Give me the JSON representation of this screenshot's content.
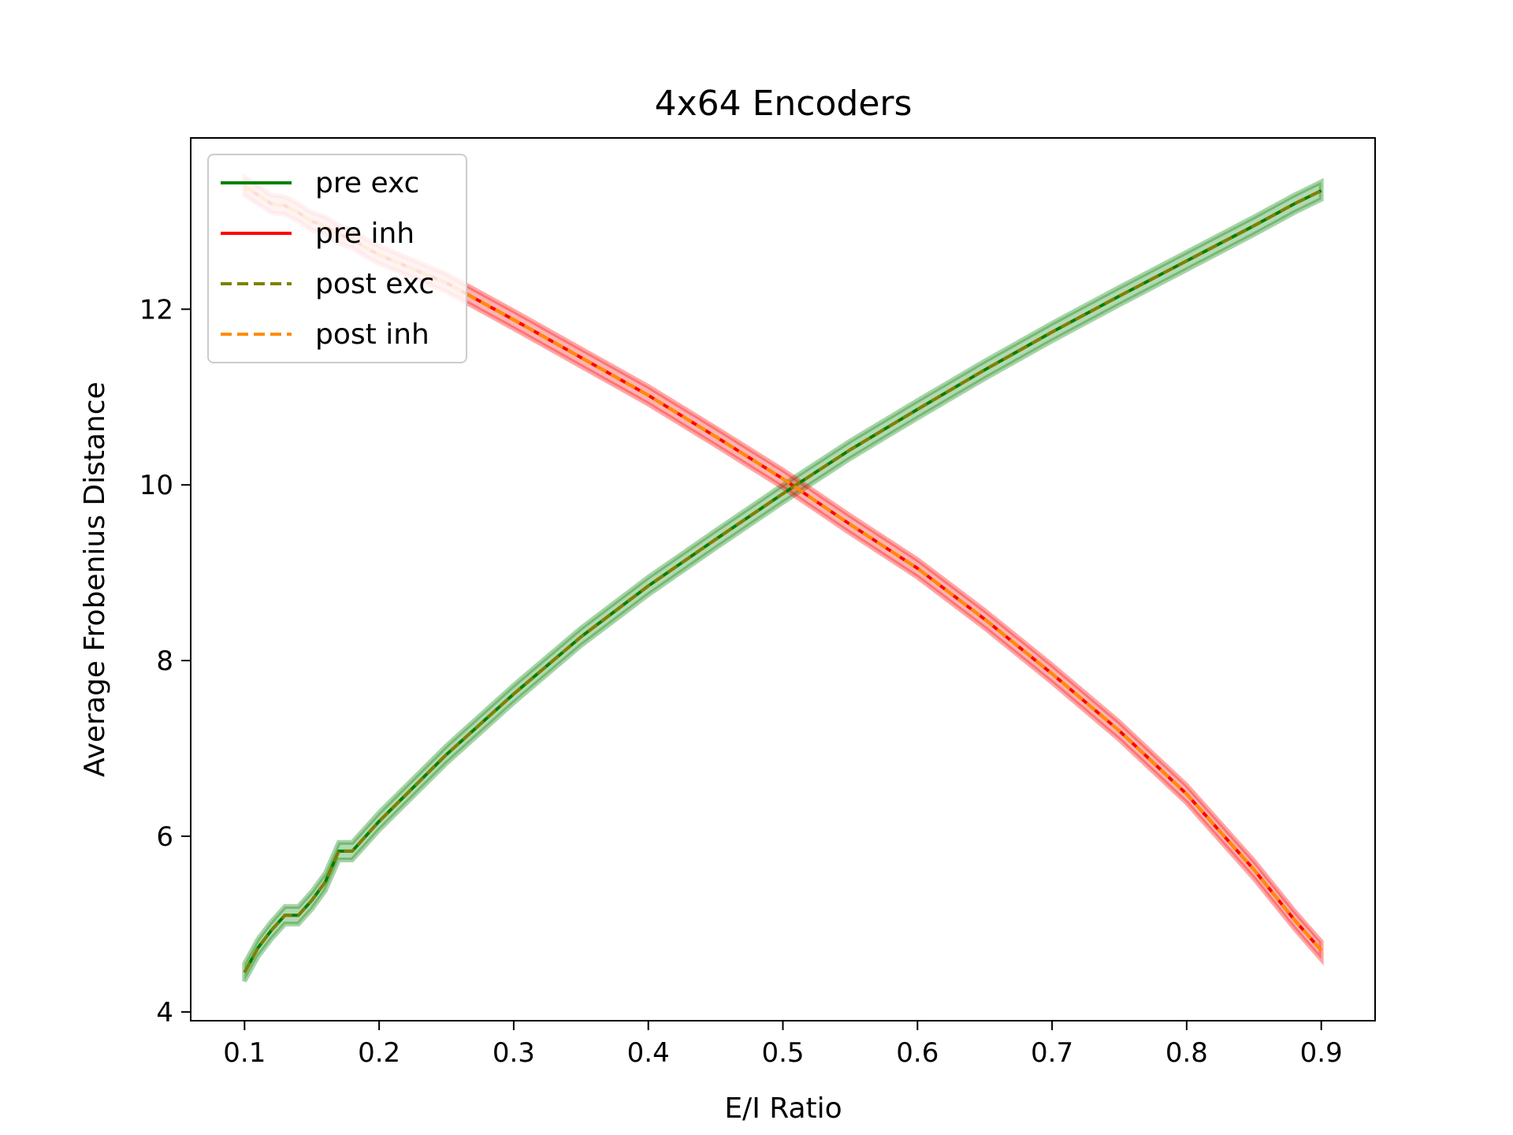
{
  "chart_data": {
    "type": "line",
    "title": "4x64 Encoders",
    "xlabel": "E/I Ratio",
    "ylabel": "Average Frobenius Distance",
    "xlim": [
      0.06,
      0.94
    ],
    "ylim": [
      3.9,
      13.95
    ],
    "xticks": [
      0.1,
      0.2,
      0.3,
      0.4,
      0.5,
      0.6,
      0.7,
      0.8,
      0.9
    ],
    "xtick_labels": [
      "0.1",
      "0.2",
      "0.3",
      "0.4",
      "0.5",
      "0.6",
      "0.7",
      "0.8",
      "0.9"
    ],
    "yticks": [
      4,
      6,
      8,
      10,
      12
    ],
    "ytick_labels": [
      "4",
      "6",
      "8",
      "10",
      "12"
    ],
    "grid": false,
    "legend_position": "top-left",
    "x": [
      0.1,
      0.11,
      0.12,
      0.13,
      0.14,
      0.15,
      0.16,
      0.17,
      0.18,
      0.19,
      0.2,
      0.25,
      0.3,
      0.35,
      0.4,
      0.45,
      0.5,
      0.55,
      0.6,
      0.65,
      0.7,
      0.75,
      0.8,
      0.85,
      0.88,
      0.9
    ],
    "series": [
      {
        "name": "pre exc",
        "color": "#008000",
        "dash": "solid",
        "band": 0.1,
        "values": [
          4.45,
          4.73,
          4.93,
          5.1,
          5.1,
          5.27,
          5.48,
          5.83,
          5.83,
          6.0,
          6.17,
          6.93,
          7.62,
          8.27,
          8.85,
          9.38,
          9.9,
          10.4,
          10.86,
          11.31,
          11.74,
          12.15,
          12.55,
          12.95,
          13.2,
          13.35
        ]
      },
      {
        "name": "pre inh",
        "color": "#ff0000",
        "dash": "solid",
        "band": 0.1,
        "values": [
          13.4,
          13.3,
          13.2,
          13.18,
          13.1,
          13.0,
          12.95,
          12.85,
          12.8,
          12.7,
          12.62,
          12.3,
          11.88,
          11.45,
          11.02,
          10.55,
          10.07,
          9.55,
          9.05,
          8.47,
          7.85,
          7.2,
          6.48,
          5.62,
          5.05,
          4.7
        ]
      },
      {
        "name": "post exc",
        "color": "#808000",
        "dash": "dashed",
        "values": [
          4.45,
          4.73,
          4.93,
          5.1,
          5.1,
          5.27,
          5.48,
          5.83,
          5.83,
          6.0,
          6.17,
          6.93,
          7.62,
          8.27,
          8.85,
          9.38,
          9.9,
          10.4,
          10.86,
          11.31,
          11.74,
          12.15,
          12.55,
          12.95,
          13.2,
          13.35
        ]
      },
      {
        "name": "post inh",
        "color": "#ff8c00",
        "dash": "dashed",
        "values": [
          13.4,
          13.3,
          13.2,
          13.18,
          13.1,
          13.0,
          12.95,
          12.85,
          12.8,
          12.7,
          12.62,
          12.3,
          11.88,
          11.45,
          11.02,
          10.55,
          10.07,
          9.55,
          9.05,
          8.47,
          7.85,
          7.2,
          6.48,
          5.62,
          5.05,
          4.7
        ]
      }
    ]
  }
}
